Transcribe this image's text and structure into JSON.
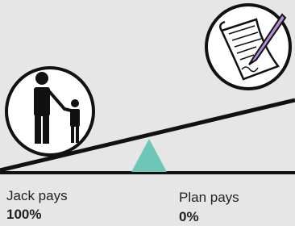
{
  "left": {
    "label": "Jack pays",
    "amount": "100%"
  },
  "right": {
    "label": "Plan pays",
    "amount": "0%"
  }
}
